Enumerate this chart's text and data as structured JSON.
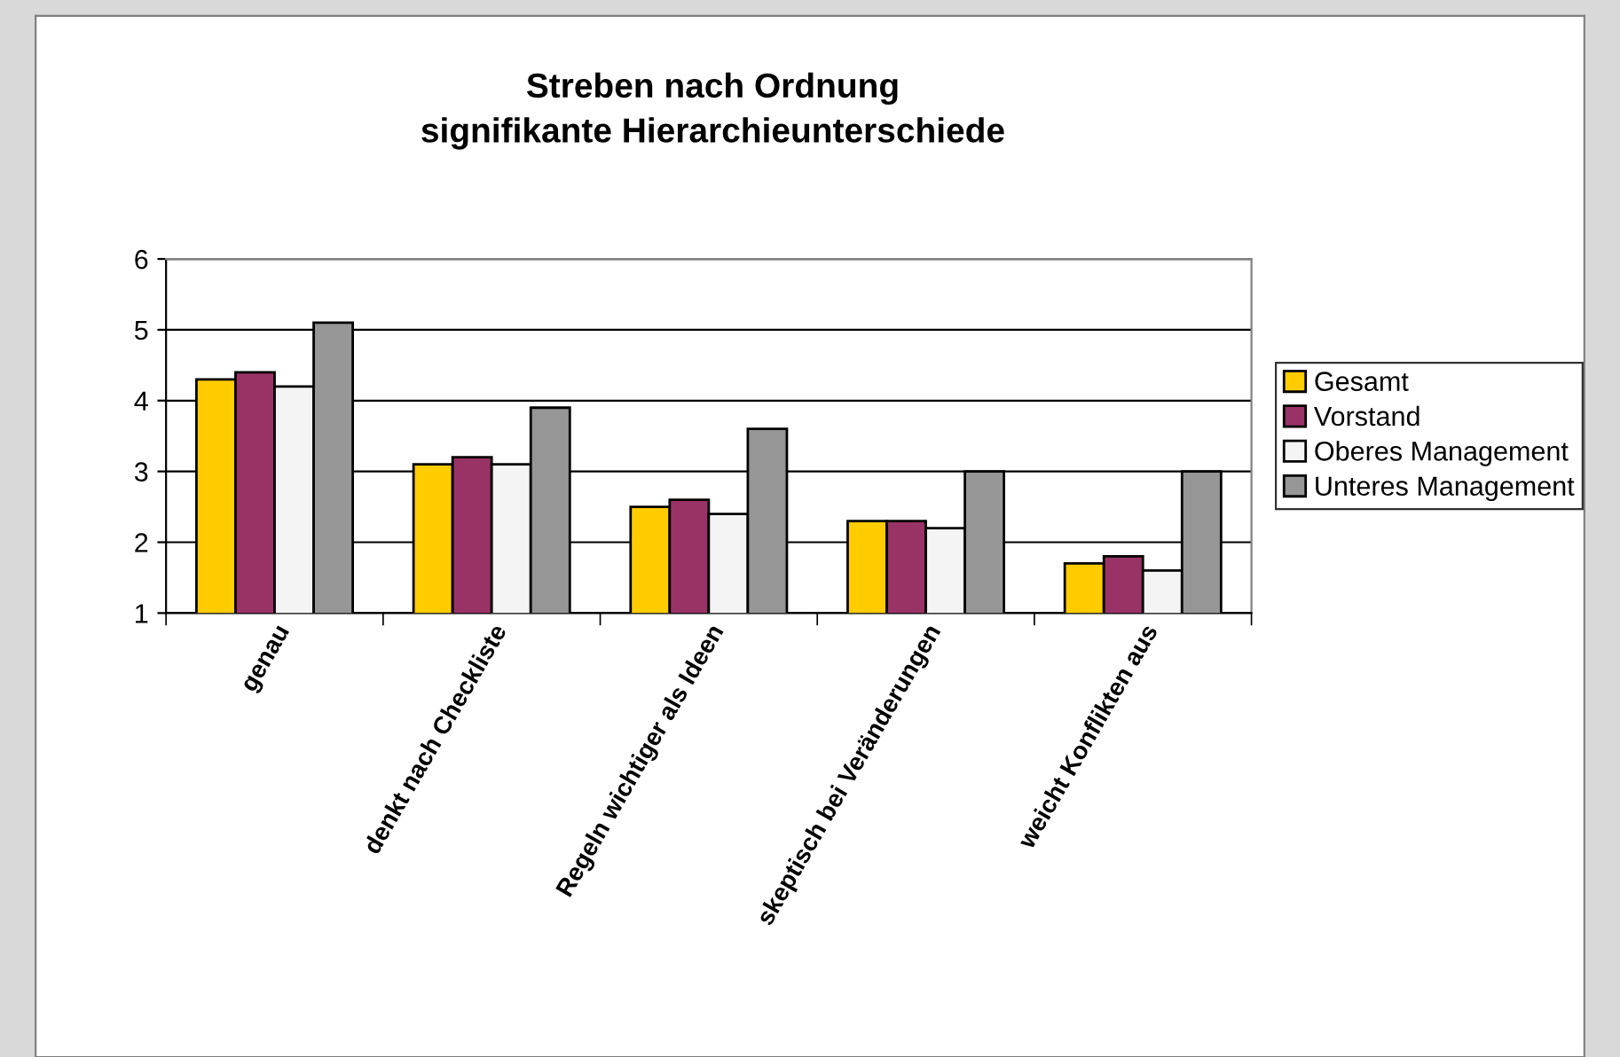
{
  "chart_data": {
    "type": "bar",
    "title": "Streben nach Ordnung\nsignifikante Hierarchieunterschiede",
    "categories": [
      "genau",
      "denkt nach Checkliste",
      "Regeln wichtiger als Ideen",
      "skeptisch bei Veränderungen",
      "weicht Konflikten aus"
    ],
    "series": [
      {
        "name": "Gesamt",
        "color": "#ffcc00",
        "values": [
          4.3,
          3.1,
          2.5,
          2.3,
          1.7
        ]
      },
      {
        "name": "Vorstand",
        "color": "#993366",
        "values": [
          4.4,
          3.2,
          2.6,
          2.3,
          1.8
        ]
      },
      {
        "name": "Oberes Management",
        "color": "#f4f4f4",
        "values": [
          4.2,
          3.1,
          2.4,
          2.2,
          1.6
        ]
      },
      {
        "name": "Unteres Management",
        "color": "#969696",
        "values": [
          5.1,
          3.9,
          3.6,
          3.0,
          3.0
        ]
      }
    ],
    "ylim": [
      1,
      6
    ],
    "yticks": [
      1,
      2,
      3,
      4,
      5,
      6
    ],
    "grid": "y",
    "legend": "right"
  }
}
